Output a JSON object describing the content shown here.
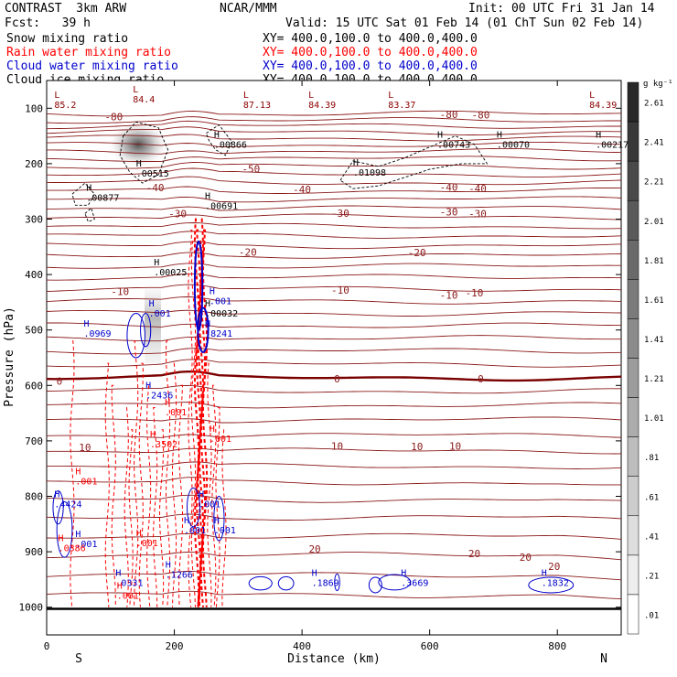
{
  "header": {
    "title": "CONTRAST  3km ARW",
    "center": "NCAR/MMM",
    "init": "Init: 00 UTC Fri 31 Jan 14",
    "fcst": "Fcst:   39 h",
    "valid": "Valid: 15 UTC Sat 01 Feb 14 (01 ChT Sun 02 Feb 14)"
  },
  "legend": [
    {
      "name": "Snow mixing ratio",
      "xy": "XY= 400.0,100.0 to 400.0,400.0",
      "color": "#000000"
    },
    {
      "name": "Rain water mixing ratio",
      "xy": "XY= 400.0,100.0 to 400.0,400.0",
      "color": "#ff0000"
    },
    {
      "name": "Cloud water mixing ratio",
      "xy": "XY= 400.0,100.0 to 400.0,400.0",
      "color": "#0000cc"
    },
    {
      "name": "Cloud ice mixing ratio",
      "xy": "XY= 400.0,100.0 to 400.0,400.0",
      "color": "#000000"
    }
  ],
  "chart_data": {
    "type": "heatmap",
    "xlabel": "Distance (km)",
    "ylabel": "Pressure (hPa)",
    "xlim": [
      0,
      900
    ],
    "ylim": [
      1050,
      50
    ],
    "x_ticks": [
      "0",
      "200",
      "400",
      "600",
      "800"
    ],
    "x_tick_values": [
      0,
      200,
      400,
      600,
      800
    ],
    "y_ticks": [
      "100",
      "200",
      "300",
      "400",
      "500",
      "600",
      "700",
      "800",
      "900",
      "1000"
    ],
    "y_tick_values": [
      100,
      200,
      300,
      400,
      500,
      600,
      700,
      800,
      900,
      1000
    ],
    "x_end_labels": [
      "S",
      "N"
    ],
    "colorbar": {
      "unit": "g kg⁻¹",
      "labels": [
        "2.61",
        "2.41",
        "2.21",
        "2.01",
        "1.81",
        "1.61",
        "1.41",
        "1.21",
        "1.01",
        ".81",
        ".61",
        ".41",
        ".21",
        ".01"
      ]
    },
    "temperature_contour_labels": [
      {
        "text": "-80",
        "x": 105,
        "p": 115
      },
      {
        "text": "-80",
        "x": 630,
        "p": 111
      },
      {
        "text": "-80",
        "x": 680,
        "p": 112
      },
      {
        "text": "-50",
        "x": 320,
        "p": 209
      },
      {
        "text": "-40",
        "x": 170,
        "p": 243
      },
      {
        "text": "-40",
        "x": 400,
        "p": 246
      },
      {
        "text": "-40",
        "x": 630,
        "p": 242
      },
      {
        "text": "-40",
        "x": 675,
        "p": 245
      },
      {
        "text": "-30",
        "x": 205,
        "p": 290
      },
      {
        "text": "-30",
        "x": 460,
        "p": 289
      },
      {
        "text": "-30",
        "x": 630,
        "p": 287
      },
      {
        "text": "-30",
        "x": 675,
        "p": 290
      },
      {
        "text": "-20",
        "x": 315,
        "p": 359
      },
      {
        "text": "-20",
        "x": 580,
        "p": 360
      },
      {
        "text": "-10",
        "x": 115,
        "p": 430
      },
      {
        "text": "-10",
        "x": 460,
        "p": 428
      },
      {
        "text": "-10",
        "x": 630,
        "p": 437
      },
      {
        "text": "-10",
        "x": 670,
        "p": 433
      },
      {
        "text": "0",
        "x": 20,
        "p": 592
      },
      {
        "text": "0",
        "x": 455,
        "p": 588
      },
      {
        "text": "0",
        "x": 680,
        "p": 588
      },
      {
        "text": "10",
        "x": 60,
        "p": 712
      },
      {
        "text": "10",
        "x": 455,
        "p": 709
      },
      {
        "text": "10",
        "x": 580,
        "p": 710
      },
      {
        "text": "10",
        "x": 640,
        "p": 709
      },
      {
        "text": "20",
        "x": 420,
        "p": 895
      },
      {
        "text": "20",
        "x": 670,
        "p": 903
      },
      {
        "text": "20",
        "x": 750,
        "p": 910
      },
      {
        "text": "20",
        "x": 795,
        "p": 926
      }
    ],
    "extrema_labels": [
      {
        "kind": "L",
        "value": "85.2",
        "x": 12,
        "p": 98,
        "color": "#8b0000"
      },
      {
        "kind": "L",
        "value": "84.4",
        "x": 135,
        "p": 88,
        "color": "#8b0000"
      },
      {
        "kind": "L",
        "value": "87.13",
        "x": 308,
        "p": 98,
        "color": "#8b0000"
      },
      {
        "kind": "L",
        "value": "84.39",
        "x": 410,
        "p": 98,
        "color": "#8b0000"
      },
      {
        "kind": "L",
        "value": "83.37",
        "x": 535,
        "p": 98,
        "color": "#8b0000"
      },
      {
        "kind": "L",
        "value": "84.39",
        "x": 850,
        "p": 98,
        "color": "#8b0000"
      },
      {
        "kind": "H",
        "value": ".00866",
        "x": 262,
        "p": 170,
        "color": "#000000"
      },
      {
        "kind": "H",
        "value": ".00743",
        "x": 612,
        "p": 170,
        "color": "#000000"
      },
      {
        "kind": "H",
        "value": ".00070",
        "x": 705,
        "p": 170,
        "color": "#000000"
      },
      {
        "kind": "H",
        "value": ".00217",
        "x": 860,
        "p": 170,
        "color": "#000000"
      },
      {
        "kind": "H",
        "value": ".00515",
        "x": 140,
        "p": 222,
        "color": "#000000"
      },
      {
        "kind": "H",
        "value": ".01098",
        "x": 480,
        "p": 220,
        "color": "#000000"
      },
      {
        "kind": "H",
        "value": ".00877",
        "x": 62,
        "p": 265,
        "color": "#000000"
      },
      {
        "kind": "H",
        "value": ".00691",
        "x": 248,
        "p": 280,
        "color": "#000000"
      },
      {
        "kind": "H",
        "value": ".00025",
        "x": 168,
        "p": 400,
        "color": "#000000"
      },
      {
        "kind": "H",
        "value": ".001",
        "x": 160,
        "p": 474,
        "color": "#0000cc"
      },
      {
        "kind": "H",
        "value": ".00032",
        "x": 248,
        "p": 474,
        "color": "#000000"
      },
      {
        "kind": "H",
        "value": ".001",
        "x": 255,
        "p": 452,
        "color": "#0000cc"
      },
      {
        "kind": "H",
        "value": ".0969",
        "x": 58,
        "p": 510,
        "color": "#0000cc"
      },
      {
        "kind": "H",
        "value": ".8241",
        "x": 248,
        "p": 510,
        "color": "#0000cc"
      },
      {
        "kind": "H",
        "value": ".2436",
        "x": 155,
        "p": 622,
        "color": "#0000cc"
      },
      {
        "kind": "H",
        "value": ".001",
        "x": 185,
        "p": 652,
        "color": "#ff0000"
      },
      {
        "kind": "H",
        "value": ".3502",
        "x": 162,
        "p": 710,
        "color": "#ff0000"
      },
      {
        "kind": "H",
        "value": ".001",
        "x": 255,
        "p": 700,
        "color": "#ff0000"
      },
      {
        "kind": "H",
        "value": ".001",
        "x": 45,
        "p": 777,
        "color": "#ff0000"
      },
      {
        "kind": "H",
        "value": ".4424",
        "x": 12,
        "p": 818,
        "color": "#0000cc"
      },
      {
        "kind": "H",
        "value": ".001",
        "x": 238,
        "p": 818,
        "color": "#0000cc"
      },
      {
        "kind": "H",
        "value": ".001",
        "x": 215,
        "p": 865,
        "color": "#0000cc"
      },
      {
        "kind": "H",
        "value": ".001",
        "x": 262,
        "p": 865,
        "color": "#0000cc"
      },
      {
        "kind": "H",
        "value": ".001",
        "x": 140,
        "p": 888,
        "color": "#ff0000"
      },
      {
        "kind": "H",
        "value": ".001",
        "x": 45,
        "p": 890,
        "color": "#0000cc"
      },
      {
        "kind": "H",
        "value": ".0386",
        "x": 18,
        "p": 897,
        "color": "#ff0000"
      },
      {
        "kind": "H",
        "value": ".1266",
        "x": 186,
        "p": 945,
        "color": "#0000cc"
      },
      {
        "kind": "H",
        "value": ".0331",
        "x": 108,
        "p": 960,
        "color": "#0000cc"
      },
      {
        "kind": "H",
        "value": ".1869",
        "x": 415,
        "p": 960,
        "color": "#0000cc"
      },
      {
        "kind": "H",
        "value": ".3669",
        "x": 555,
        "p": 960,
        "color": "#0000cc"
      },
      {
        "kind": "H",
        "value": ".1832",
        "x": 775,
        "p": 960,
        "color": "#0000cc"
      },
      {
        "kind": "H",
        "value": ".001",
        "x": 110,
        "p": 983,
        "color": "#ff0000"
      }
    ]
  }
}
